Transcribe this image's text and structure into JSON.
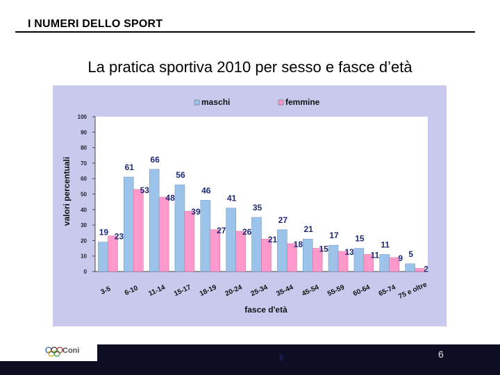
{
  "header": {
    "title": "I NUMERI DELLO SPORT"
  },
  "slide": {
    "subtitle": "La pratica sportiva 2010 per sesso e fasce d’età"
  },
  "footer": {
    "logo_text": "Coni",
    "center_number": "6",
    "page_number": "6"
  },
  "colors": {
    "maschi": "#9cc3ea",
    "femmine": "#ff99cc",
    "value_label": "#1e2a78",
    "panel": "#c9c9ee",
    "plot": "#ffffff"
  },
  "chart_data": {
    "type": "bar",
    "title": "",
    "xlabel": "fasce d'età",
    "ylabel": "valori percentuali",
    "ylim": [
      0,
      100
    ],
    "yticks": [
      0,
      10,
      20,
      30,
      40,
      50,
      60,
      70,
      80,
      90,
      100
    ],
    "grid": false,
    "legend_position": "top",
    "categories": [
      "3-5",
      "6-10",
      "11-14",
      "15-17",
      "18-19",
      "20-24",
      "25-34",
      "35-44",
      "45-54",
      "55-59",
      "60-64",
      "65-74",
      "75 e oltre"
    ],
    "series": [
      {
        "name": "maschi",
        "values": [
          19,
          61,
          66,
          56,
          46,
          41,
          35,
          27,
          21,
          17,
          15,
          11,
          5
        ]
      },
      {
        "name": "femmine",
        "values": [
          23,
          53,
          48,
          39,
          27,
          26,
          21,
          18,
          15,
          13,
          11,
          9,
          2
        ]
      }
    ]
  }
}
